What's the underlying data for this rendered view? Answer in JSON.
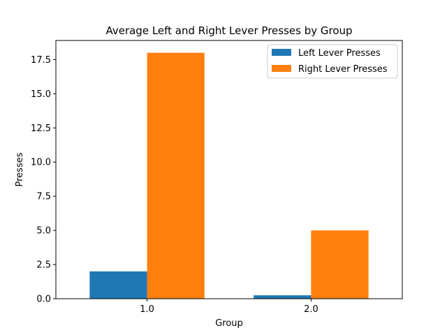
{
  "chart_data": {
    "type": "bar",
    "title": "Average Left and Right Lever Presses by Group",
    "xlabel": "Group",
    "ylabel": "Presses",
    "categories": [
      "1.0",
      "2.0"
    ],
    "series": [
      {
        "name": "Left Lever Presses",
        "color": "#1f77b4",
        "values": [
          2.0,
          0.25
        ]
      },
      {
        "name": "Right Lever Presses",
        "color": "#ff7f0e",
        "values": [
          18.0,
          5.0
        ]
      }
    ],
    "ylim": [
      0,
      18.9
    ],
    "yticks": [
      "0.0",
      "2.5",
      "5.0",
      "7.5",
      "10.0",
      "12.5",
      "15.0",
      "17.5"
    ],
    "grid": false,
    "legend_position": "top-right"
  }
}
